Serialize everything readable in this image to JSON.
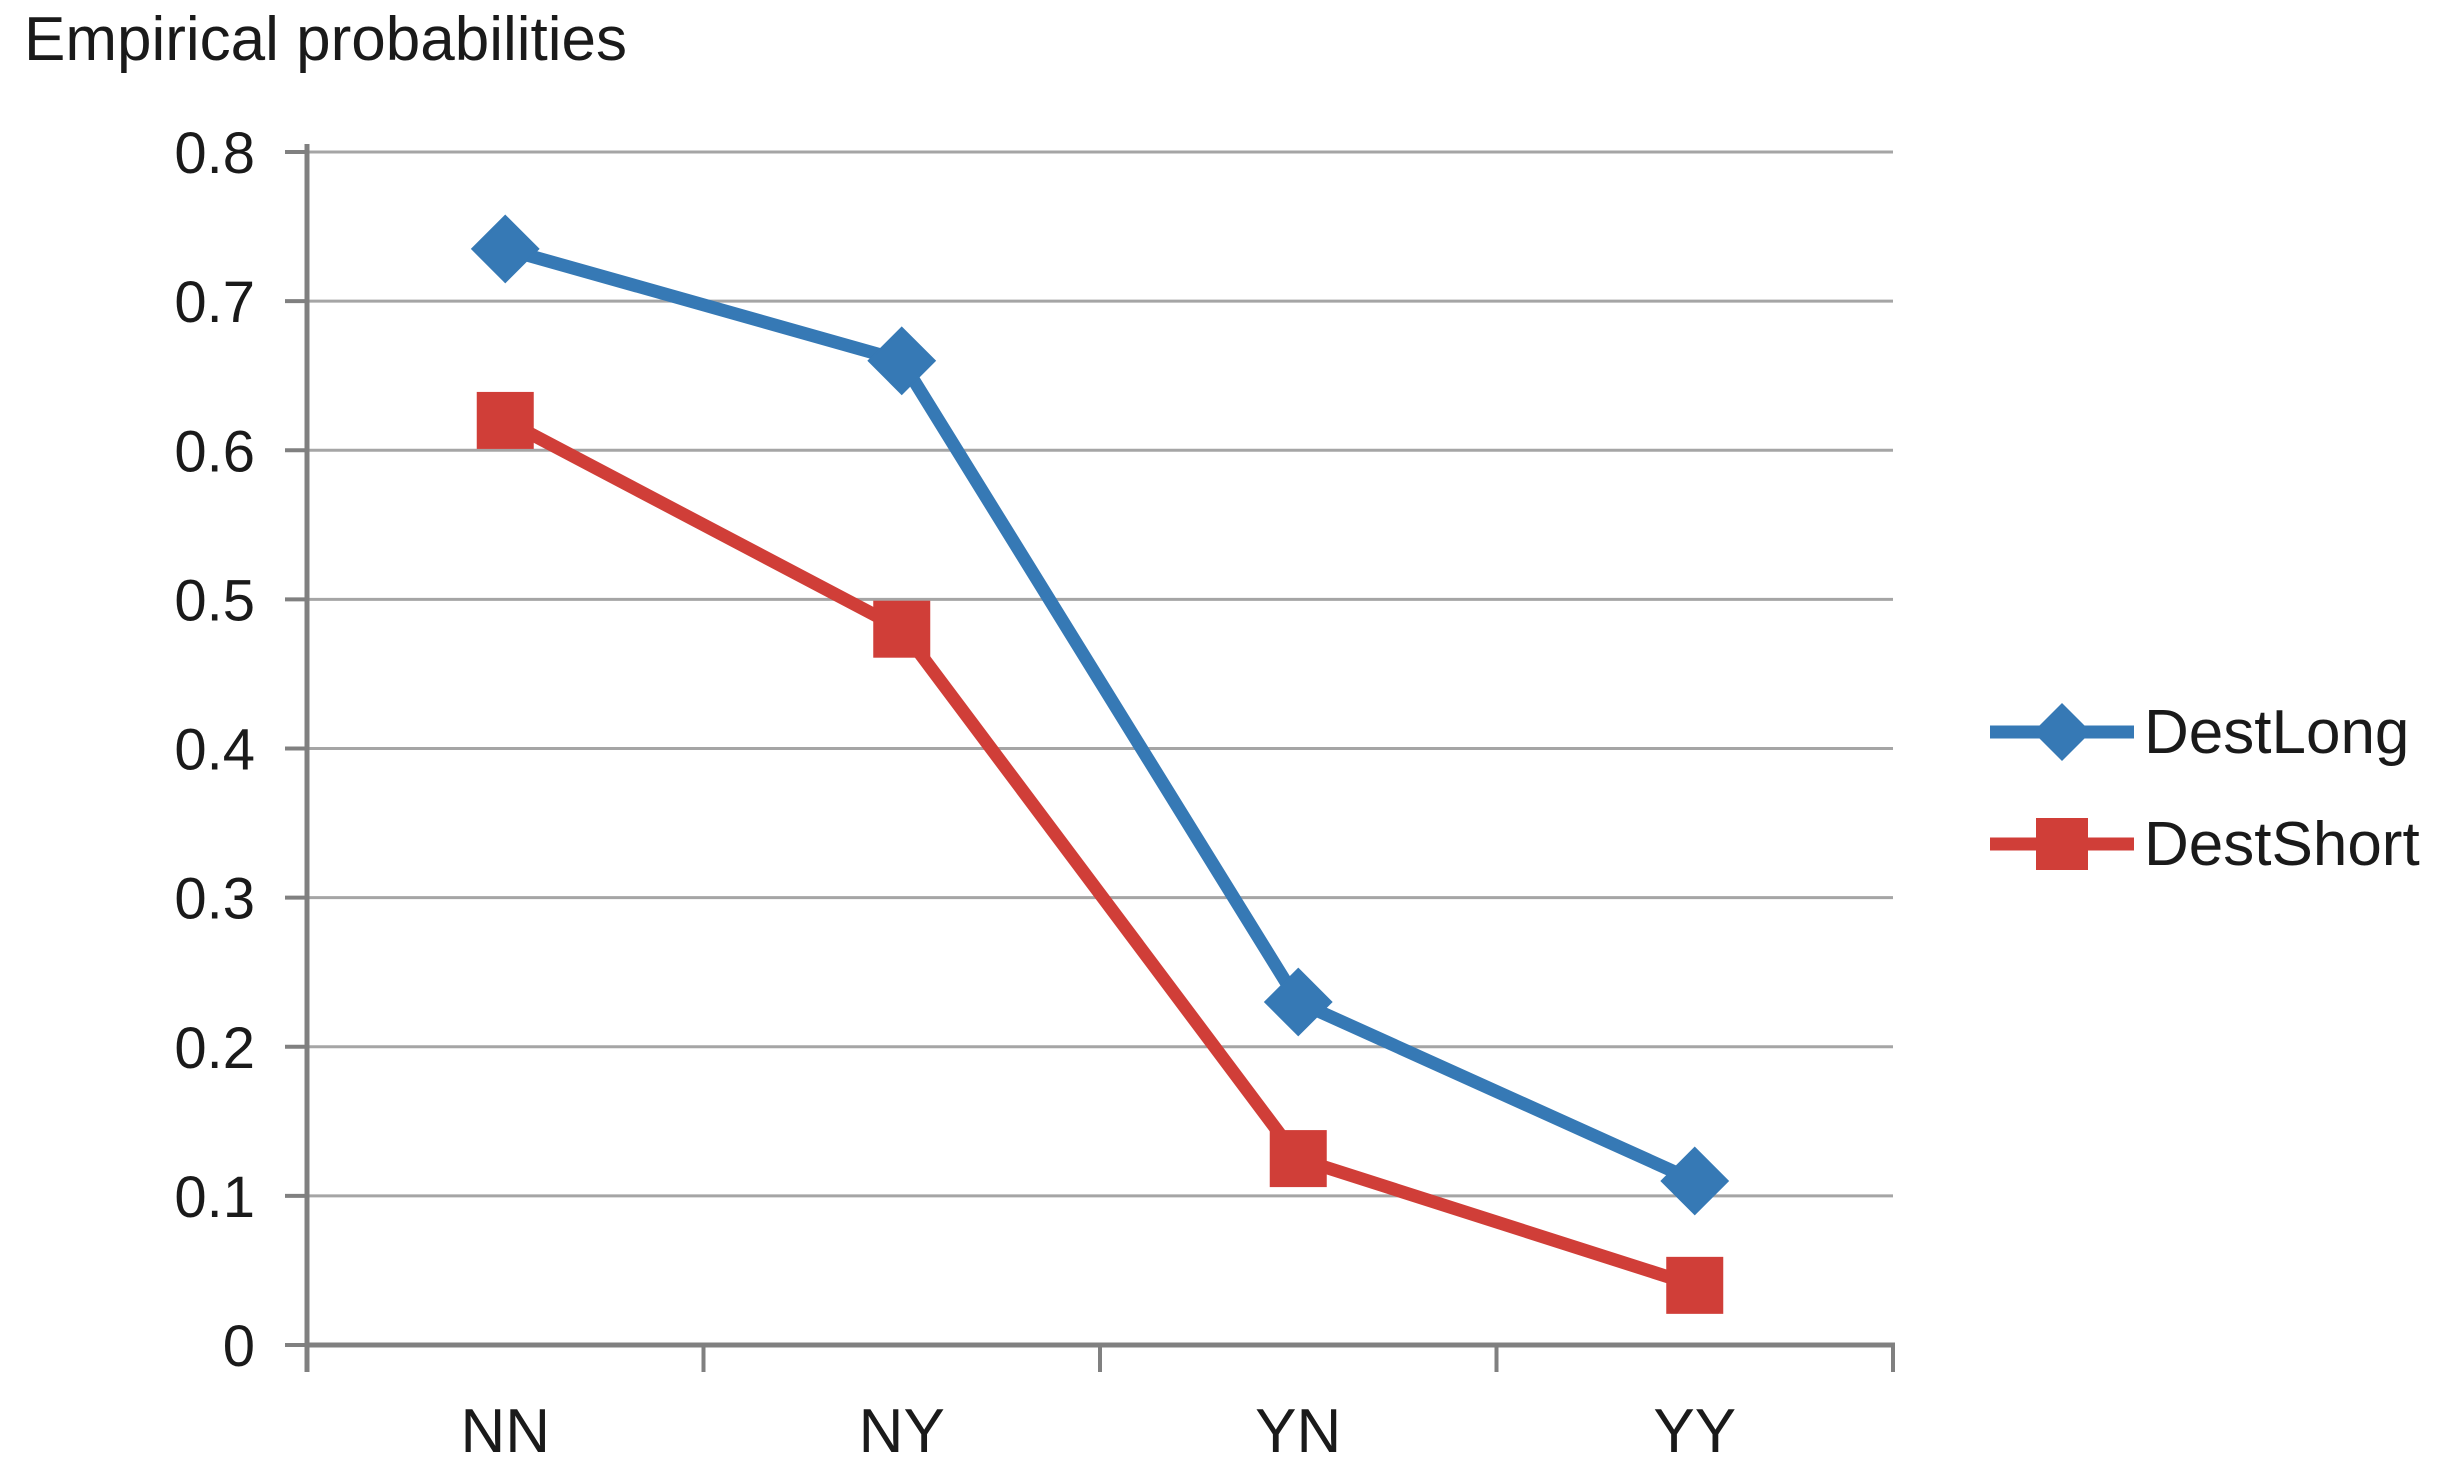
{
  "title": "Empirical probabilities",
  "chart_data": {
    "type": "line",
    "title": "Empirical probabilities",
    "categories": [
      "NN",
      "NY",
      "YN",
      "YY"
    ],
    "series": [
      {
        "name": "DestLong",
        "values": [
          0.735,
          0.66,
          0.23,
          0.11
        ],
        "color": "#3679B5",
        "marker": "diamond"
      },
      {
        "name": "DestShort",
        "values": [
          0.62,
          0.48,
          0.125,
          0.04
        ],
        "color": "#D03E38",
        "marker": "square"
      }
    ],
    "xlabel": "",
    "ylabel": "",
    "ylim": [
      0,
      0.8
    ],
    "ytick_step": 0.1,
    "ytick_labels": [
      "0",
      "0.1",
      "0.2",
      "0.3",
      "0.4",
      "0.5",
      "0.6",
      "0.7",
      "0.8"
    ],
    "grid": "horizontal",
    "legend_position": "right"
  },
  "colors": {
    "background": "#FFFFFF",
    "gridline": "#A5A5A5",
    "axis": "#808080",
    "text": "#1A1A1A",
    "series_destlong": "#3679B5",
    "series_destshort": "#D03E38"
  }
}
